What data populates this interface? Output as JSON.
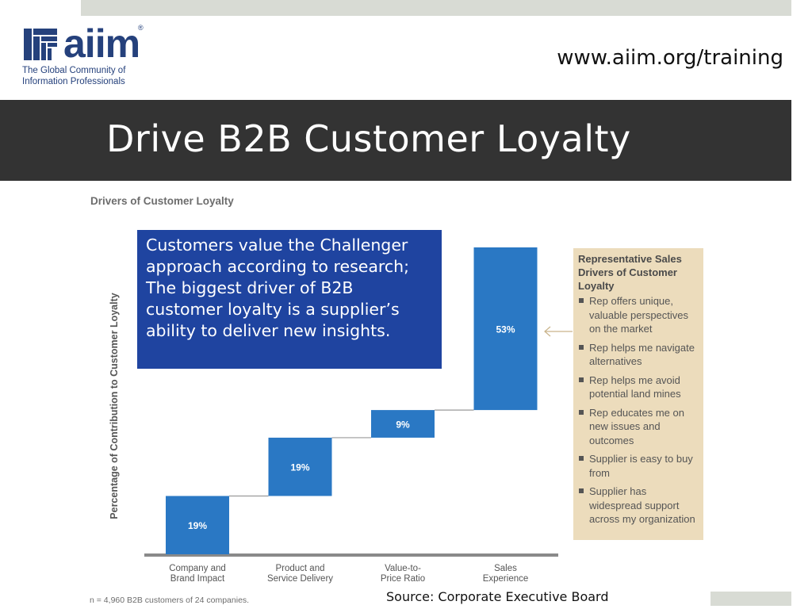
{
  "header": {
    "url": "www.aiim.org/training",
    "logo_text": "aiim",
    "logo_registered": "®",
    "logo_tagline": "The Global Community of Information Professionals",
    "brand_color": "#25417c"
  },
  "slide": {
    "title": "Drive B2B Customer Loyalty",
    "title_bar_color": "#333333"
  },
  "callout": {
    "text": "Customers value the Challenger approach according to research; The biggest driver of B2B customer loyalty is a supplier’s ability to deliver new insights.",
    "color": "#1f44a0"
  },
  "side_box": {
    "title": "Representative Sales Drivers of Customer Loyalty",
    "items": [
      "Rep offers unique, valuable perspectives on the market",
      "Rep helps me navigate alternatives",
      "Rep helps me avoid potential land mines",
      "Rep educates me on new issues and outcomes",
      "Supplier is easy to buy from",
      "Supplier has widespread support across my organization"
    ],
    "color": "#ecdcbc"
  },
  "footnote": "n = 4,960 B2B customers of 24 companies.",
  "source": "Source: Corporate Executive Board",
  "chart_data": {
    "type": "bar",
    "subtype": "waterfall",
    "title": "Drivers of Customer Loyalty",
    "ylabel": "Percentage of Contribution to Customer Loyalty",
    "xlabel": "",
    "categories": [
      "Company and Brand Impact",
      "Product and Service Delivery",
      "Value-to-Price Ratio",
      "Sales Experience"
    ],
    "category_lines": [
      [
        "Company and",
        "Brand Impact"
      ],
      [
        "Product and",
        "Service Delivery"
      ],
      [
        "Value-to-",
        "Price Ratio"
      ],
      [
        "Sales",
        "Experience"
      ]
    ],
    "values": [
      19,
      19,
      9,
      53
    ],
    "labels": [
      "19%",
      "19%",
      "9%",
      "53%"
    ],
    "ylim": [
      0,
      100
    ],
    "grid": false,
    "bar_color": "#2a78c4"
  }
}
